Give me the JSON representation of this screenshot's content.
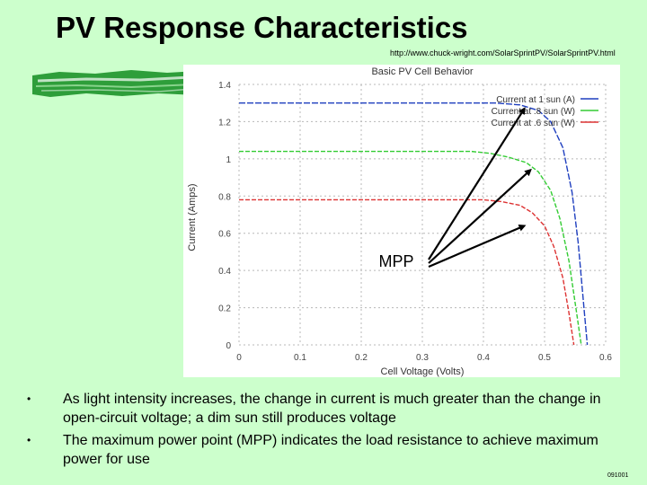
{
  "slide": {
    "title": "PV Response Characteristics",
    "source_url": "http://www.chuck-wright.com/SolarSprintPV/SolarSprintPV.html",
    "slide_number": "091001",
    "bullets": [
      "As light intensity increases, the change in current is much greater than the change in open-circuit voltage; a dim sun still produces voltage",
      "The maximum power point (MPP) indicates the load resistance to achieve maximum power for use"
    ]
  },
  "colors": {
    "background": "#ccffcc",
    "brush": "#2e9e3a",
    "series_1sun": "#1f3fbf",
    "series_08sun": "#33cc33",
    "series_06sun": "#dd3333",
    "grid": "#b8b8b8",
    "annotation": "#000000"
  },
  "chart_data": {
    "type": "line",
    "title": "Basic PV Cell Behavior",
    "xlabel": "Cell Voltage (Volts)",
    "ylabel": "Current (Amps)",
    "xlim": [
      0,
      0.6
    ],
    "ylim": [
      0,
      1.4
    ],
    "xticks": [
      "0",
      "0.1",
      "0.2",
      "0.3",
      "0.4",
      "0.5",
      "0.6"
    ],
    "yticks": [
      "0",
      "0.2",
      "0.4",
      "0.6",
      "0.8",
      "1",
      "1.2",
      "1.4"
    ],
    "grid": true,
    "legend_position": "top-right",
    "annotation": "MPP",
    "series": [
      {
        "name": "Current at 1 sun (A)",
        "color_key": "series_1sun",
        "x": [
          0,
          0.29,
          0.36,
          0.42,
          0.46,
          0.49,
          0.51,
          0.53,
          0.545,
          0.555,
          0.565,
          0.57
        ],
        "y": [
          1.3,
          1.3,
          1.3,
          1.3,
          1.29,
          1.26,
          1.2,
          1.06,
          0.82,
          0.55,
          0.18,
          0
        ]
      },
      {
        "name": "Current at .8 sun (W)",
        "color_key": "series_08sun",
        "x": [
          0,
          0.29,
          0.34,
          0.38,
          0.41,
          0.44,
          0.47,
          0.49,
          0.51,
          0.525,
          0.54,
          0.553,
          0.56
        ],
        "y": [
          1.04,
          1.04,
          1.04,
          1.04,
          1.03,
          1.01,
          0.98,
          0.93,
          0.83,
          0.68,
          0.45,
          0.16,
          0
        ]
      },
      {
        "name": "Current at .6 sun (W)",
        "color_key": "series_06sun",
        "x": [
          0,
          0.29,
          0.36,
          0.4,
          0.43,
          0.46,
          0.48,
          0.5,
          0.515,
          0.53,
          0.54,
          0.548
        ],
        "y": [
          0.78,
          0.78,
          0.78,
          0.78,
          0.77,
          0.75,
          0.71,
          0.64,
          0.53,
          0.36,
          0.17,
          0
        ]
      }
    ],
    "mpp_points": [
      {
        "x": 0.47,
        "y": 1.28
      },
      {
        "x": 0.48,
        "y": 0.95
      },
      {
        "x": 0.47,
        "y": 0.65
      }
    ]
  }
}
